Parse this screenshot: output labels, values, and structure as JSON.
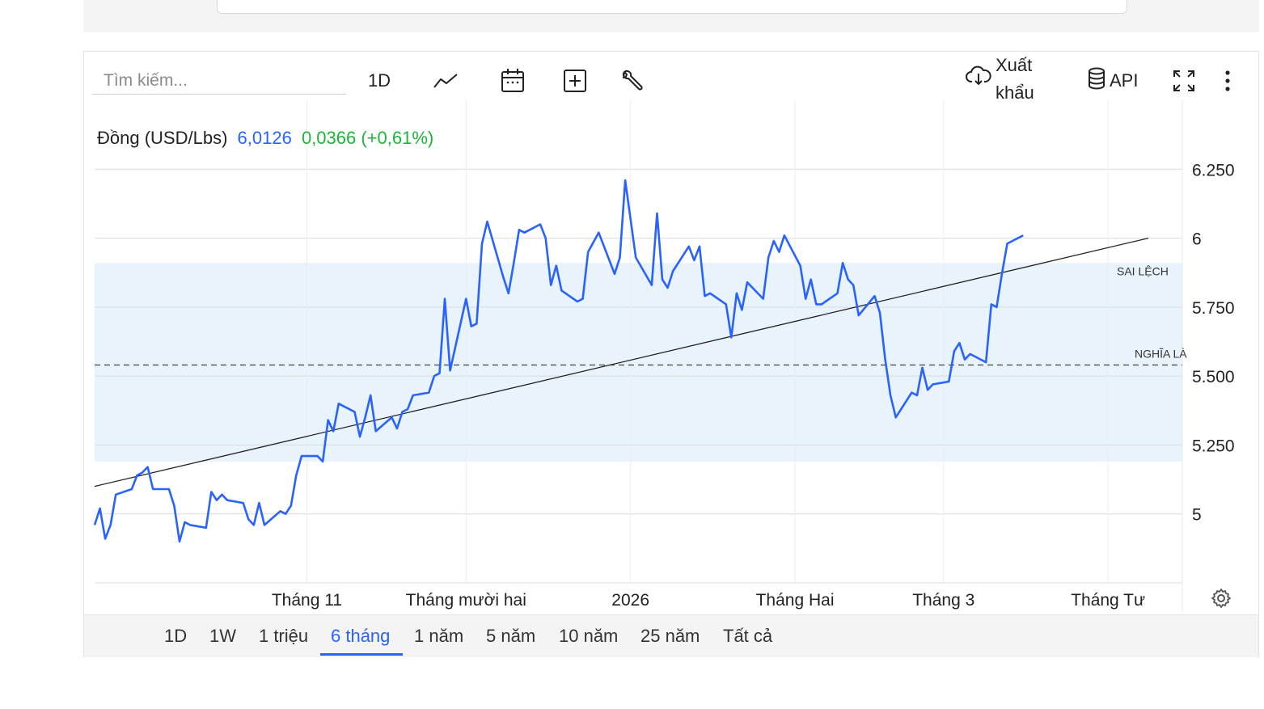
{
  "toolbar": {
    "search_placeholder": "Tìm kiếm...",
    "interval_label": "1D",
    "export_label_line1": "Xuất",
    "export_label_line2": "khẩu",
    "api_label": "API",
    "icons": [
      "line-chart-icon",
      "calendar-icon",
      "add-indicator-icon",
      "wrench-icon",
      "cloud-download-icon",
      "database-icon",
      "fullscreen-icon",
      "more-vertical-icon"
    ]
  },
  "legend": {
    "name": "Đồng (USD/Lbs)",
    "price": "6,0126",
    "change": "0,0366 (+0,61%)"
  },
  "range_buttons": [
    "1D",
    "1W",
    "1 triệu",
    "6 tháng",
    "1 năm",
    "5 năm",
    "10 năm",
    "25 năm",
    "Tất cả"
  ],
  "active_range": "6 tháng",
  "colors": {
    "series": "#2962ff",
    "up": "#1db43a",
    "band": "#e9f3fb",
    "trend": "#222222",
    "mean": "#444444"
  },
  "chart_data": {
    "type": "line",
    "y_ticks": [
      5.0,
      5.25,
      5.5,
      5.75,
      6.0,
      6.25
    ],
    "y_tick_labels": [
      "5",
      "5.250",
      "5.500",
      "5.750",
      "6",
      "6.250"
    ],
    "x_tick_labels": [
      {
        "label": "Tháng 11",
        "date": "2025-11-01"
      },
      {
        "label": "Tháng mười hai",
        "date": "2025-12-01"
      },
      {
        "label": "2026",
        "date": "2026-01-01"
      },
      {
        "label": "Tháng Hai",
        "date": "2026-02-01"
      },
      {
        "label": "Tháng 3",
        "date": "2026-03-01"
      },
      {
        "label": "Tháng Tư",
        "date": "2026-04-01"
      }
    ],
    "ylim": [
      4.75,
      6.5
    ],
    "grid": true,
    "bands": [
      {
        "label": "SAI LỆCH",
        "from": 5.19,
        "to": 5.91
      }
    ],
    "mean_line": {
      "label": "NGHĨA LÀ",
      "value": 5.54
    },
    "trend_line": {
      "start": 5.1,
      "end": 6.0
    },
    "series": [
      {
        "name": "Đồng (USD/Lbs)",
        "points": [
          [
            "2025-09-22",
            4.96
          ],
          [
            "2025-09-23",
            5.02
          ],
          [
            "2025-09-24",
            4.91
          ],
          [
            "2025-09-25",
            4.96
          ],
          [
            "2025-09-26",
            5.07
          ],
          [
            "2025-09-29",
            5.09
          ],
          [
            "2025-09-30",
            5.14
          ],
          [
            "2025-10-01",
            5.15
          ],
          [
            "2025-10-02",
            5.17
          ],
          [
            "2025-10-03",
            5.09
          ],
          [
            "2025-10-06",
            5.09
          ],
          [
            "2025-10-07",
            5.03
          ],
          [
            "2025-10-08",
            4.9
          ],
          [
            "2025-10-09",
            4.97
          ],
          [
            "2025-10-10",
            4.96
          ],
          [
            "2025-10-13",
            4.95
          ],
          [
            "2025-10-14",
            5.08
          ],
          [
            "2025-10-15",
            5.05
          ],
          [
            "2025-10-16",
            5.07
          ],
          [
            "2025-10-17",
            5.05
          ],
          [
            "2025-10-20",
            5.04
          ],
          [
            "2025-10-21",
            4.98
          ],
          [
            "2025-10-22",
            4.96
          ],
          [
            "2025-10-23",
            5.04
          ],
          [
            "2025-10-24",
            4.96
          ],
          [
            "2025-10-27",
            5.01
          ],
          [
            "2025-10-28",
            5.0
          ],
          [
            "2025-10-29",
            5.03
          ],
          [
            "2025-10-30",
            5.14
          ],
          [
            "2025-10-31",
            5.21
          ],
          [
            "2025-11-03",
            5.21
          ],
          [
            "2025-11-04",
            5.19
          ],
          [
            "2025-11-05",
            5.34
          ],
          [
            "2025-11-06",
            5.3
          ],
          [
            "2025-11-07",
            5.4
          ],
          [
            "2025-11-10",
            5.37
          ],
          [
            "2025-11-11",
            5.28
          ],
          [
            "2025-11-12",
            5.35
          ],
          [
            "2025-11-13",
            5.43
          ],
          [
            "2025-11-14",
            5.3
          ],
          [
            "2025-11-17",
            5.35
          ],
          [
            "2025-11-18",
            5.31
          ],
          [
            "2025-11-19",
            5.37
          ],
          [
            "2025-11-20",
            5.38
          ],
          [
            "2025-11-21",
            5.43
          ],
          [
            "2025-11-24",
            5.44
          ],
          [
            "2025-11-25",
            5.5
          ],
          [
            "2025-11-26",
            5.51
          ],
          [
            "2025-11-27",
            5.78
          ],
          [
            "2025-11-28",
            5.52
          ],
          [
            "2025-12-01",
            5.78
          ],
          [
            "2025-12-02",
            5.68
          ],
          [
            "2025-12-03",
            5.69
          ],
          [
            "2025-12-04",
            5.98
          ],
          [
            "2025-12-05",
            6.06
          ],
          [
            "2025-12-08",
            5.86
          ],
          [
            "2025-12-09",
            5.8
          ],
          [
            "2025-12-10",
            5.91
          ],
          [
            "2025-12-11",
            6.03
          ],
          [
            "2025-12-12",
            6.02
          ],
          [
            "2025-12-15",
            6.05
          ],
          [
            "2025-12-16",
            6.0
          ],
          [
            "2025-12-17",
            5.83
          ],
          [
            "2025-12-18",
            5.9
          ],
          [
            "2025-12-19",
            5.81
          ],
          [
            "2025-12-22",
            5.77
          ],
          [
            "2025-12-23",
            5.78
          ],
          [
            "2025-12-24",
            5.95
          ],
          [
            "2025-12-26",
            6.02
          ],
          [
            "2025-12-29",
            5.87
          ],
          [
            "2025-12-30",
            5.93
          ],
          [
            "2025-12-31",
            6.21
          ],
          [
            "2026-01-02",
            5.93
          ],
          [
            "2026-01-05",
            5.83
          ],
          [
            "2026-01-06",
            6.09
          ],
          [
            "2026-01-07",
            5.85
          ],
          [
            "2026-01-08",
            5.82
          ],
          [
            "2026-01-09",
            5.88
          ],
          [
            "2026-01-12",
            5.97
          ],
          [
            "2026-01-13",
            5.92
          ],
          [
            "2026-01-14",
            5.97
          ],
          [
            "2026-01-15",
            5.79
          ],
          [
            "2026-01-16",
            5.8
          ],
          [
            "2026-01-19",
            5.76
          ],
          [
            "2026-01-20",
            5.64
          ],
          [
            "2026-01-21",
            5.8
          ],
          [
            "2026-01-22",
            5.74
          ],
          [
            "2026-01-23",
            5.84
          ],
          [
            "2026-01-26",
            5.78
          ],
          [
            "2026-01-27",
            5.93
          ],
          [
            "2026-01-28",
            5.99
          ],
          [
            "2026-01-29",
            5.95
          ],
          [
            "2026-01-30",
            6.01
          ],
          [
            "2026-02-02",
            5.9
          ],
          [
            "2026-02-03",
            5.78
          ],
          [
            "2026-02-04",
            5.85
          ],
          [
            "2026-02-05",
            5.76
          ],
          [
            "2026-02-06",
            5.76
          ],
          [
            "2026-02-09",
            5.8
          ],
          [
            "2026-02-10",
            5.91
          ],
          [
            "2026-02-11",
            5.85
          ],
          [
            "2026-02-12",
            5.83
          ],
          [
            "2026-02-13",
            5.72
          ],
          [
            "2026-02-16",
            5.79
          ],
          [
            "2026-02-17",
            5.73
          ],
          [
            "2026-02-18",
            5.56
          ],
          [
            "2026-02-19",
            5.43
          ],
          [
            "2026-02-20",
            5.35
          ],
          [
            "2026-02-23",
            5.44
          ],
          [
            "2026-02-24",
            5.43
          ],
          [
            "2026-02-25",
            5.53
          ],
          [
            "2026-02-26",
            5.45
          ],
          [
            "2026-02-27",
            5.47
          ],
          [
            "2026-03-02",
            5.48
          ],
          [
            "2026-03-03",
            5.59
          ],
          [
            "2026-03-04",
            5.62
          ],
          [
            "2026-03-05",
            5.56
          ],
          [
            "2026-03-06",
            5.58
          ],
          [
            "2026-03-09",
            5.55
          ],
          [
            "2026-03-10",
            5.76
          ],
          [
            "2026-03-11",
            5.75
          ],
          [
            "2026-03-12",
            5.87
          ],
          [
            "2026-03-13",
            5.98
          ],
          [
            "2026-03-16",
            6.01
          ]
        ]
      }
    ]
  }
}
